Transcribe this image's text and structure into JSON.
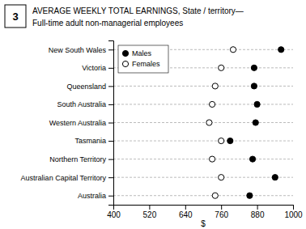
{
  "chart_data": {
    "type": "dot",
    "title": "AVERAGE WEEKLY TOTAL EARNINGS, State / territory—",
    "subtitle": "Full-time adult non-managerial employees",
    "annotations": [
      "3"
    ],
    "x_label": "$",
    "orientation": "horizontal",
    "categories": [
      "New South Wales",
      "Victoria",
      "Queensland",
      "South Australia",
      "Western Australia",
      "Tasmania",
      "Northern Territory",
      "Australian Capital Territory",
      "Australia"
    ],
    "series": [
      {
        "name": "Males",
        "color": "#000000",
        "marker": "circle",
        "values": [
          960,
          870,
          870,
          880,
          875,
          790,
          865,
          940,
          855
        ]
      },
      {
        "name": "Females",
        "color": "#ffffff",
        "marker": "circle",
        "values": [
          800,
          760,
          740,
          730,
          720,
          760,
          730,
          760,
          740
        ]
      }
    ],
    "xlim": [
      400,
      1000
    ],
    "xticks": [
      400,
      520,
      640,
      760,
      880,
      1000
    ],
    "grid": true,
    "legend": "upper left"
  }
}
